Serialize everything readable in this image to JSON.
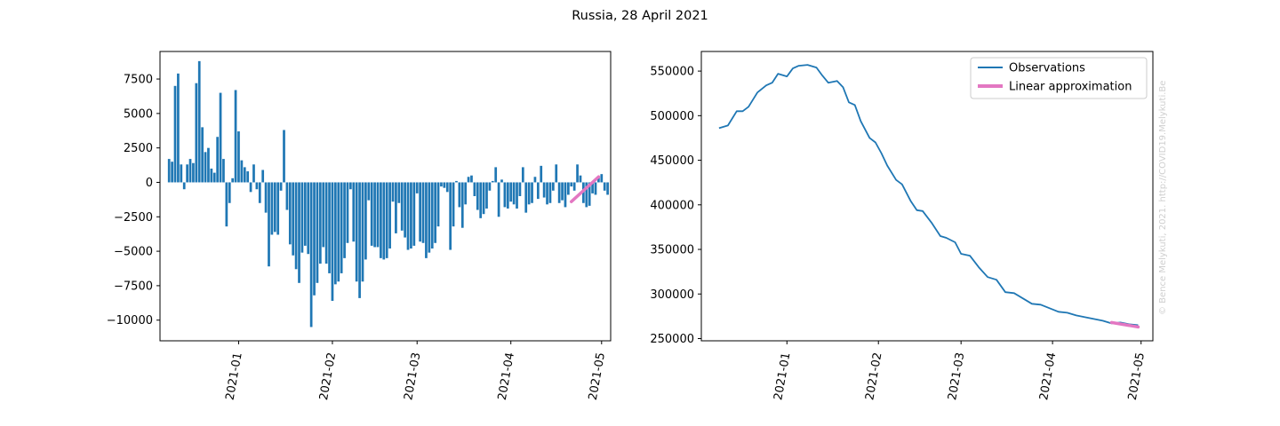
{
  "figure": {
    "suptitle": "Russia, 28 April 2021",
    "credit": "© Bence Melykuti, 2021. http://COVID19.Melykuti.Be"
  },
  "colors": {
    "observations": "#1f77b4",
    "approximation": "#e377c2",
    "axis": "#000000",
    "credit": "#cfcfcf"
  },
  "chart_data": [
    {
      "type": "bar",
      "title": "",
      "xlabel": "",
      "ylabel": "",
      "x_start_date": "2020-12-09",
      "xlim_days": [
        -3,
        146
      ],
      "ylim": [
        -11500,
        9500
      ],
      "yticks": [
        -10000,
        -7500,
        -5000,
        -2500,
        0,
        2500,
        5000,
        7500
      ],
      "ytick_labels": [
        "−10000",
        "−7500",
        "−5000",
        "−2500",
        "0",
        "2500",
        "5000",
        "7500"
      ],
      "xticks_days": [
        23,
        54,
        82,
        113,
        143
      ],
      "xtick_labels": [
        "2021-01",
        "2021-02",
        "2021-03",
        "2021-04",
        "2021-05"
      ],
      "values": [
        1700,
        1500,
        7000,
        7900,
        1300,
        -500,
        1300,
        1700,
        1400,
        7200,
        8800,
        4000,
        2200,
        2500,
        1000,
        700,
        3300,
        6500,
        1700,
        -3200,
        -1500,
        300,
        6700,
        3700,
        1600,
        1100,
        800,
        -700,
        1300,
        -500,
        -1500,
        900,
        -2200,
        -6100,
        -3800,
        -3600,
        -3800,
        -600,
        3800,
        -2000,
        -4500,
        -5300,
        -6300,
        -7300,
        -5100,
        -4600,
        -5200,
        -10500,
        -8200,
        -7300,
        -5900,
        -4700,
        -5900,
        -6600,
        -8600,
        -7400,
        -7200,
        -6600,
        -5500,
        -4400,
        -500,
        -4300,
        -7200,
        -8400,
        -7200,
        -5600,
        -1300,
        -4600,
        -4700,
        -4700,
        -5500,
        -5600,
        -5500,
        -4800,
        -1400,
        -3700,
        -1500,
        -3500,
        -4000,
        -4900,
        -4800,
        -4600,
        -800,
        -4300,
        -4400,
        -5500,
        -5100,
        -4800,
        -4400,
        -3200,
        -300,
        -400,
        -700,
        -4900,
        -3200,
        100,
        -1800,
        -3300,
        -1600,
        400,
        500,
        -1000,
        -2000,
        -2600,
        -2300,
        -1900,
        -600,
        100,
        1100,
        -2500,
        200,
        -1800,
        -1900,
        -1400,
        -1600,
        -1900,
        -1000,
        1100,
        -2200,
        -1600,
        -1500,
        400,
        -1200,
        1200,
        -1100,
        -1600,
        -1500,
        -600,
        1300,
        -1500,
        -1300,
        -1800,
        -900,
        -300,
        -600,
        1300,
        500,
        -1500,
        -1800,
        -1700,
        -800,
        -900,
        400,
        600,
        -600,
        -900
      ]
    },
    {
      "type": "line",
      "title": "",
      "xlabel": "",
      "ylabel": "",
      "x_start_date": "2020-12-09",
      "xlim_days": [
        -6,
        147
      ],
      "ylim": [
        247500,
        572000
      ],
      "yticks": [
        250000,
        300000,
        350000,
        400000,
        450000,
        500000,
        550000
      ],
      "ytick_labels": [
        "250000",
        "300000",
        "350000",
        "400000",
        "450000",
        "500000",
        "550000"
      ],
      "xticks_days": [
        23,
        54,
        82,
        113,
        143
      ],
      "xtick_labels": [
        "2021-01",
        "2021-02",
        "2021-03",
        "2021-04",
        "2021-05"
      ],
      "legend": {
        "location": "upper right",
        "entries": [
          "Observations",
          "Linear approximation"
        ]
      },
      "series": [
        {
          "name": "Observations",
          "x_days": [
            0,
            3,
            6,
            8,
            10,
            13,
            16,
            18,
            20,
            23,
            25,
            27,
            30,
            33,
            35,
            37,
            40,
            42,
            44,
            46,
            48,
            51,
            53,
            55,
            57,
            60,
            62,
            65,
            67,
            69,
            72,
            75,
            77,
            80,
            82,
            85,
            88,
            91,
            94,
            97,
            100,
            103,
            106,
            109,
            112,
            115,
            118,
            121,
            124,
            127,
            130,
            133,
            136,
            139,
            142
          ],
          "values": [
            486000,
            489000,
            505000,
            505000,
            510000,
            526000,
            534000,
            537000,
            547000,
            544000,
            553000,
            556000,
            557000,
            554000,
            545000,
            537000,
            539000,
            532000,
            515000,
            512000,
            494000,
            475000,
            470000,
            458000,
            444000,
            428000,
            423000,
            404000,
            394000,
            393000,
            380000,
            365000,
            363000,
            358000,
            345000,
            343000,
            330000,
            319000,
            316000,
            302000,
            301000,
            295000,
            289000,
            288000,
            284000,
            280000,
            279000,
            276000,
            274000,
            272000,
            270000,
            267000,
            268000,
            266000,
            265000
          ]
        },
        {
          "name": "Linear approximation",
          "x_days": [
            133,
            142
          ],
          "values": [
            268000,
            263000
          ]
        }
      ]
    }
  ]
}
